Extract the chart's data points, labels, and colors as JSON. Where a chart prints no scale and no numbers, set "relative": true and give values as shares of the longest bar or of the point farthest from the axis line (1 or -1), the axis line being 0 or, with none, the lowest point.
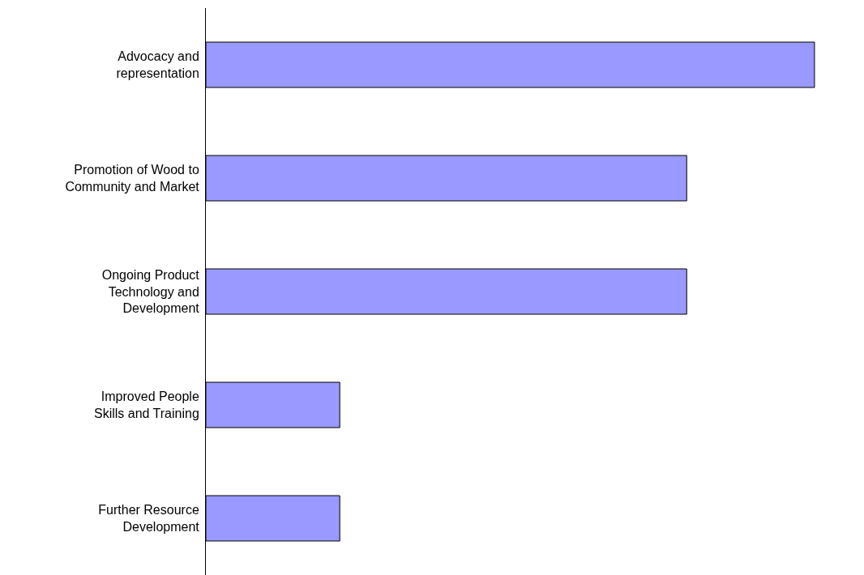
{
  "chart_data": {
    "type": "bar",
    "orientation": "horizontal",
    "relative": true,
    "categories": [
      "Advocacy and representation",
      "Promotion of Wood to Community and Market",
      "Ongoing Product Technology and Development",
      "Improved People Skills and Training",
      "Further Resource Development"
    ],
    "values": [
      1,
      0.79,
      0.79,
      0.22,
      0.22
    ],
    "color": "#9999ff"
  }
}
